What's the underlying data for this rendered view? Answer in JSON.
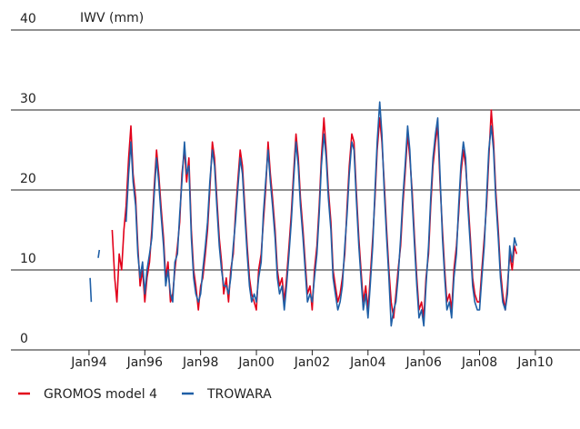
{
  "chart_data": {
    "type": "line",
    "ylabel": "IWV (mm)",
    "x": [
      1994.04,
      1994.08,
      1994.21,
      1994.33,
      1994.37,
      1994.6,
      1994.83,
      1994.92,
      1995.0,
      1995.08,
      1995.17,
      1995.25,
      1995.33,
      1995.42,
      1995.5,
      1995.58,
      1995.67,
      1995.75,
      1995.83,
      1995.92,
      1996.0,
      1996.08,
      1996.17,
      1996.25,
      1996.33,
      1996.42,
      1996.5,
      1996.58,
      1996.67,
      1996.75,
      1996.83,
      1996.92,
      1997.0,
      1997.08,
      1997.17,
      1997.25,
      1997.33,
      1997.42,
      1997.5,
      1997.58,
      1997.67,
      1997.75,
      1997.83,
      1997.92,
      1998.0,
      1998.08,
      1998.17,
      1998.25,
      1998.33,
      1998.42,
      1998.5,
      1998.58,
      1998.67,
      1998.75,
      1998.83,
      1998.92,
      1999.0,
      1999.08,
      1999.17,
      1999.25,
      1999.33,
      1999.42,
      1999.5,
      1999.58,
      1999.67,
      1999.75,
      1999.83,
      1999.92,
      2000.0,
      2000.08,
      2000.17,
      2000.25,
      2000.33,
      2000.42,
      2000.5,
      2000.58,
      2000.67,
      2000.75,
      2000.83,
      2000.92,
      2001.0,
      2001.08,
      2001.17,
      2001.25,
      2001.33,
      2001.42,
      2001.5,
      2001.58,
      2001.67,
      2001.75,
      2001.83,
      2001.92,
      2002.0,
      2002.08,
      2002.17,
      2002.25,
      2002.33,
      2002.42,
      2002.5,
      2002.58,
      2002.67,
      2002.75,
      2002.83,
      2002.92,
      2003.0,
      2003.08,
      2003.17,
      2003.25,
      2003.33,
      2003.42,
      2003.5,
      2003.58,
      2003.67,
      2003.75,
      2003.83,
      2003.92,
      2004.0,
      2004.08,
      2004.17,
      2004.25,
      2004.33,
      2004.42,
      2004.5,
      2004.58,
      2004.67,
      2004.75,
      2004.83,
      2004.92,
      2005.0,
      2005.08,
      2005.17,
      2005.25,
      2005.33,
      2005.42,
      2005.5,
      2005.58,
      2005.67,
      2005.75,
      2005.83,
      2005.92,
      2006.0,
      2006.08,
      2006.17,
      2006.25,
      2006.33,
      2006.42,
      2006.5,
      2006.58,
      2006.67,
      2006.75,
      2006.83,
      2006.92,
      2007.0,
      2007.08,
      2007.17,
      2007.25,
      2007.33,
      2007.42,
      2007.5,
      2007.58,
      2007.67,
      2007.75,
      2007.83,
      2007.92,
      2008.0,
      2008.08,
      2008.17,
      2008.25,
      2008.33,
      2008.42,
      2008.5,
      2008.58,
      2008.67,
      2008.75,
      2008.83,
      2008.92,
      2009.0,
      2009.08,
      2009.17,
      2009.25,
      2009.33
    ],
    "series": [
      {
        "name": "GROMOS model 4",
        "color": "#e2001a",
        "values": [
          null,
          null,
          null,
          null,
          null,
          null,
          15,
          9,
          6,
          12,
          10,
          15,
          18,
          24,
          28,
          22,
          19,
          13,
          8,
          10,
          6,
          9,
          11,
          15,
          20,
          25,
          22,
          18,
          14,
          9,
          11,
          6,
          7,
          10,
          13,
          16,
          22,
          25,
          21,
          24,
          15,
          10,
          8,
          5,
          8,
          9,
          12,
          15,
          20,
          26,
          24,
          19,
          14,
          11,
          7,
          9,
          6,
          10,
          12,
          17,
          21,
          25,
          23,
          18,
          13,
          9,
          7,
          6,
          5,
          10,
          12,
          16,
          20,
          26,
          22,
          19,
          15,
          10,
          8,
          9,
          6,
          9,
          13,
          17,
          22,
          27,
          24,
          19,
          15,
          11,
          7,
          8,
          5,
          10,
          13,
          18,
          24,
          29,
          25,
          20,
          16,
          10,
          8,
          6,
          7,
          9,
          12,
          18,
          23,
          27,
          26,
          20,
          14,
          10,
          6,
          8,
          5,
          9,
          14,
          19,
          25,
          29,
          26,
          21,
          15,
          10,
          6,
          4,
          7,
          10,
          13,
          18,
          22,
          27,
          24,
          20,
          14,
          9,
          5,
          6,
          4,
          9,
          12,
          18,
          23,
          26,
          28,
          21,
          15,
          10,
          6,
          7,
          5,
          10,
          13,
          17,
          22,
          25,
          23,
          19,
          14,
          9,
          7,
          6,
          6,
          10,
          14,
          18,
          24,
          30,
          26,
          20,
          15,
          10,
          7,
          5,
          8,
          12,
          10,
          13,
          12
        ]
      },
      {
        "name": "TROWARA",
        "color": "#1f5fa6",
        "values": [
          9,
          6,
          null,
          11.5,
          12.5,
          null,
          null,
          null,
          null,
          null,
          null,
          null,
          16,
          22,
          26,
          21,
          18,
          12,
          9,
          11,
          7,
          10,
          12,
          14,
          19,
          24,
          21,
          17,
          13,
          8,
          10,
          7,
          6,
          11,
          12,
          17,
          21,
          26,
          22,
          23,
          14,
          9,
          7,
          6,
          7,
          10,
          13,
          16,
          21,
          25,
          23,
          18,
          13,
          10,
          8,
          8,
          7,
          9,
          13,
          16,
          20,
          24,
          22,
          17,
          12,
          8,
          6,
          7,
          6,
          9,
          11,
          17,
          21,
          25,
          21,
          18,
          14,
          9,
          7,
          8,
          5,
          8,
          12,
          16,
          21,
          26,
          23,
          18,
          14,
          10,
          6,
          7,
          6,
          9,
          12,
          17,
          23,
          27,
          24,
          19,
          15,
          9,
          7,
          5,
          6,
          8,
          13,
          17,
          22,
          26,
          25,
          19,
          13,
          9,
          5,
          7,
          4,
          8,
          13,
          20,
          26,
          31,
          27,
          20,
          14,
          9,
          3,
          5,
          6,
          9,
          14,
          19,
          23,
          28,
          25,
          19,
          13,
          8,
          4,
          5,
          3,
          8,
          13,
          19,
          24,
          27,
          29,
          22,
          14,
          9,
          5,
          6,
          4,
          9,
          12,
          18,
          23,
          26,
          24,
          18,
          13,
          8,
          6,
          5,
          5,
          9,
          13,
          19,
          25,
          28,
          25,
          19,
          14,
          9,
          6,
          5,
          7,
          13,
          11,
          14,
          13
        ]
      }
    ],
    "xlim": [
      1991.2,
      2011.6
    ],
    "xticks": [
      {
        "value": 1994,
        "label": "Jan94"
      },
      {
        "value": 1996,
        "label": "Jan96"
      },
      {
        "value": 1998,
        "label": "Jan98"
      },
      {
        "value": 2000,
        "label": "Jan00"
      },
      {
        "value": 2002,
        "label": "Jan02"
      },
      {
        "value": 2004,
        "label": "Jan04"
      },
      {
        "value": 2006,
        "label": "Jan06"
      },
      {
        "value": 2008,
        "label": "Jan08"
      },
      {
        "value": 2010,
        "label": "Jan10"
      }
    ],
    "ylim": [
      0,
      40
    ],
    "yticks": [
      0,
      10,
      20,
      30,
      40
    ],
    "grid": true,
    "legend": "bottom"
  }
}
